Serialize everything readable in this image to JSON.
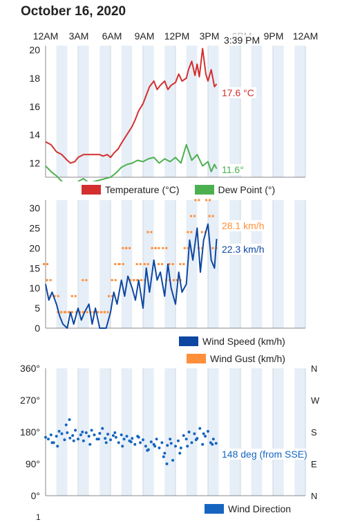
{
  "title": "October 16, 2020",
  "x_ticks": [
    "12AM",
    "3AM",
    "6AM",
    "9AM",
    "12PM",
    "3PM",
    "6PM",
    "9PM",
    "12AM"
  ],
  "cursor_time": "3:39 PM",
  "colors": {
    "temperature": "#d32f2f",
    "dew_point": "#4caf50",
    "wind_speed": "#0d47a1",
    "wind_gust": "#ff8f3a",
    "wind_direction": "#1565c0",
    "band": "#e6eef7"
  },
  "chart_data": [
    {
      "type": "line",
      "name": "temperature-chart",
      "x_unit": "hours since midnight",
      "xlim": [
        0,
        24
      ],
      "ylim": [
        11,
        20.3
      ],
      "y_ticks": [
        "12",
        "14",
        "16",
        "18",
        "20"
      ],
      "series": [
        {
          "name": "Temperature (°C)",
          "current_value": "17.6 °C",
          "x": [
            0,
            0.5,
            1,
            1.5,
            2,
            2.3,
            2.7,
            3,
            3.5,
            4,
            4.5,
            5,
            5.3,
            5.7,
            6,
            6.3,
            6.7,
            7,
            7.5,
            8,
            8.3,
            8.6,
            9,
            9.3,
            9.6,
            10,
            10.3,
            10.6,
            11,
            11.3,
            11.6,
            12,
            12.3,
            12.6,
            13,
            13.2,
            13.5,
            13.8,
            14,
            14.2,
            14.5,
            14.8,
            15,
            15.3,
            15.6,
            15.8
          ],
          "y": [
            13.5,
            13.3,
            12.8,
            12.6,
            12.2,
            12.0,
            12.1,
            12.4,
            12.6,
            12.6,
            12.6,
            12.6,
            12.5,
            12.6,
            12.4,
            12.7,
            13.0,
            13.4,
            14.0,
            14.6,
            15.1,
            15.7,
            16.2,
            16.8,
            17.4,
            17.8,
            17.2,
            17.5,
            17.8,
            17.2,
            17.5,
            17.7,
            18.3,
            17.8,
            18.0,
            18.6,
            19.2,
            18.2,
            19.0,
            18.1,
            20.1,
            18.3,
            17.8,
            18.6,
            17.4,
            17.6
          ]
        },
        {
          "name": "Dew Point (°)",
          "current_value": "11.6°",
          "x": [
            0,
            0.5,
            1,
            1.5,
            2,
            2.5,
            3,
            3.5,
            4,
            4.5,
            5,
            5.5,
            6,
            6.5,
            7,
            7.5,
            8,
            8.5,
            9,
            9.5,
            10,
            10.5,
            11,
            11.5,
            12,
            12.5,
            13,
            13.5,
            14,
            14.5,
            15,
            15.3,
            15.6,
            15.8
          ],
          "y": [
            11.8,
            11.4,
            11.1,
            10.7,
            10.5,
            10.3,
            10.7,
            10.9,
            10.6,
            10.7,
            10.8,
            10.9,
            11.0,
            11.3,
            11.7,
            11.9,
            12.0,
            12.2,
            12.1,
            12.3,
            12.4,
            12.0,
            12.3,
            12.1,
            12.4,
            12.0,
            13.3,
            12.2,
            12.6,
            11.8,
            12.1,
            11.4,
            11.9,
            11.6
          ]
        }
      ],
      "legend": [
        "Temperature (°C)",
        "Dew Point (°)"
      ]
    },
    {
      "type": "line",
      "name": "wind-chart",
      "x_unit": "hours since midnight",
      "xlim": [
        0,
        24
      ],
      "ylim": [
        0,
        32
      ],
      "y_ticks": [
        "0",
        "5",
        "10",
        "15",
        "20",
        "25",
        "30"
      ],
      "series": [
        {
          "name": "Wind Speed (km/h)",
          "current_value": "22.3 km/h",
          "x": [
            0,
            0.3,
            0.6,
            1,
            1.3,
            1.6,
            2,
            2.3,
            2.6,
            3,
            3.3,
            3.6,
            4,
            4.3,
            4.6,
            5,
            5.3,
            5.6,
            6,
            6.3,
            6.6,
            7,
            7.3,
            7.6,
            8,
            8.3,
            8.6,
            9,
            9.3,
            9.6,
            10,
            10.3,
            10.6,
            11,
            11.3,
            11.6,
            12,
            12.3,
            12.6,
            13,
            13.3,
            13.6,
            14,
            14.3,
            14.6,
            15,
            15.3,
            15.6,
            15.8
          ],
          "y": [
            11,
            7,
            9,
            6,
            3,
            1,
            0,
            4,
            1,
            5,
            2,
            4,
            6,
            1,
            5,
            0,
            0,
            0,
            4,
            9,
            6,
            12,
            8,
            13,
            10,
            7,
            12,
            5,
            15,
            9,
            17,
            12,
            14,
            8,
            16,
            10,
            6,
            14,
            9,
            11,
            22,
            17,
            25,
            14,
            22,
            26,
            17,
            15,
            22.3
          ]
        },
        {
          "name": "Wind Gust (km/h)",
          "current_value": "28.1 km/h",
          "x": [
            0,
            0.3,
            0.6,
            1,
            1.3,
            1.6,
            2,
            2.3,
            2.6,
            3,
            3.3,
            3.6,
            4,
            4.3,
            4.6,
            5,
            5.3,
            5.6,
            6,
            6.3,
            6.6,
            7,
            7.3,
            7.6,
            8,
            8.3,
            8.6,
            9,
            9.3,
            9.6,
            10,
            10.3,
            10.6,
            11,
            11.3,
            11.6,
            12,
            12.3,
            12.6,
            13,
            13.3,
            13.6,
            14,
            14.3,
            14.6,
            15,
            15.3,
            15.6
          ],
          "y": [
            16,
            12,
            8,
            8,
            4,
            4,
            4,
            4,
            8,
            4,
            4,
            12,
            4,
            4,
            4,
            4,
            4,
            4,
            8,
            12,
            16,
            16,
            20,
            20,
            12,
            12,
            16,
            12,
            16,
            24,
            20,
            20,
            16,
            20,
            12,
            16,
            12,
            12,
            16,
            20,
            24,
            28,
            32,
            20,
            24,
            32,
            28,
            20
          ]
        }
      ],
      "legend": [
        "Wind Speed (km/h)",
        "Wind Gust (km/h)"
      ]
    },
    {
      "type": "scatter",
      "name": "wind-direction-chart",
      "x_unit": "hours since midnight",
      "xlim": [
        0,
        24
      ],
      "ylim": [
        0,
        360
      ],
      "y_ticks": [
        "0°",
        "90°",
        "180°",
        "270°",
        "360°"
      ],
      "y_ticks_right": [
        "N",
        "E",
        "S",
        "W",
        "N"
      ],
      "series": [
        {
          "name": "Wind Direction",
          "current_value": "148 deg (from SSE)",
          "x": [
            0,
            0.25,
            0.5,
            0.75,
            1,
            1.25,
            1.5,
            1.75,
            2,
            2.25,
            2.5,
            2.75,
            3,
            3.25,
            3.5,
            3.75,
            4,
            4.25,
            4.5,
            4.75,
            5,
            5.25,
            5.5,
            5.75,
            6,
            6.25,
            6.5,
            6.75,
            7,
            7.25,
            7.5,
            7.75,
            8,
            8.25,
            8.5,
            8.75,
            9,
            9.25,
            9.5,
            9.75,
            10,
            10.25,
            10.5,
            10.75,
            11,
            11.25,
            11.5,
            11.75,
            12,
            12.25,
            12.5,
            12.75,
            13,
            13.25,
            13.5,
            13.75,
            14,
            14.25,
            14.5,
            14.75,
            15,
            15.25,
            15.5,
            15.75,
            0.6,
            1.1,
            1.9,
            2.6,
            3.4,
            4.1,
            4.9,
            5.6,
            6.4,
            7.1,
            7.9,
            8.6,
            9.4,
            10.1,
            10.9,
            11.6,
            12.4,
            13.1,
            13.9,
            14.6,
            15.4,
            2.2,
            11.2
          ],
          "y": [
            165,
            160,
            172,
            150,
            168,
            182,
            175,
            158,
            178,
            163,
            170,
            185,
            160,
            172,
            155,
            178,
            168,
            185,
            172,
            160,
            176,
            190,
            162,
            174,
            158,
            170,
            165,
            150,
            172,
            160,
            168,
            155,
            162,
            145,
            168,
            150,
            158,
            140,
            130,
            152,
            145,
            160,
            135,
            150,
            120,
            142,
            160,
            100,
            140,
            155,
            135,
            170,
            160,
            180,
            150,
            175,
            162,
            190,
            145,
            168,
            182,
            150,
            160,
            148,
            150,
            140,
            200,
            155,
            180,
            145,
            160,
            150,
            178,
            140,
            152,
            165,
            128,
            140,
            110,
            148,
            120,
            140,
            158,
            175,
            145,
            215,
            90
          ]
        }
      ],
      "legend": [
        "Wind Direction"
      ]
    }
  ],
  "footer_tick": "1"
}
